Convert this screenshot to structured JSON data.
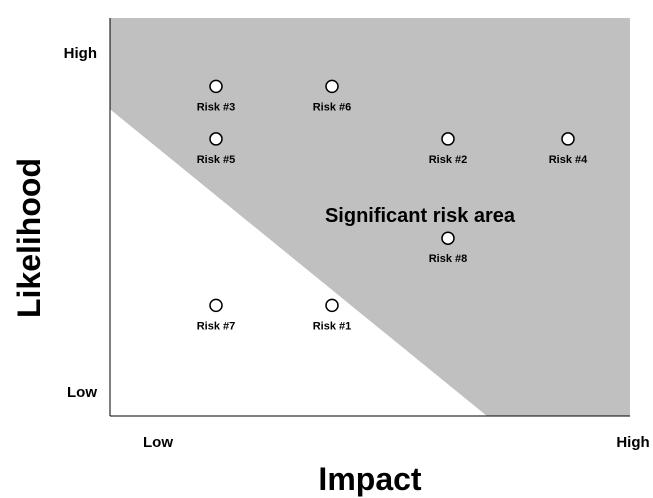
{
  "chart_data": {
    "type": "scatter",
    "title": "",
    "xlabel": "Impact",
    "ylabel": "Likelihood",
    "x_ticks": [
      "Low",
      "High"
    ],
    "y_ticks": [
      "High",
      "Low"
    ],
    "xlim": [
      0,
      10
    ],
    "ylim": [
      0,
      10
    ],
    "grid": false,
    "region": {
      "label": "Significant risk area",
      "color": "#c0c0c0",
      "boundary": [
        [
          0,
          6.8
        ],
        [
          6.1,
          0
        ]
      ]
    },
    "points": [
      {
        "label": "Risk #3",
        "x": 1.2,
        "y": 9.2
      },
      {
        "label": "Risk #6",
        "x": 4.1,
        "y": 9.2
      },
      {
        "label": "Risk #5",
        "x": 1.2,
        "y": 7.4
      },
      {
        "label": "Risk #2",
        "x": 7.0,
        "y": 7.4
      },
      {
        "label": "Risk #4",
        "x": 10.0,
        "y": 7.4
      },
      {
        "label": "Risk #8",
        "x": 7.0,
        "y": 4.0
      },
      {
        "label": "Risk #7",
        "x": 1.2,
        "y": 1.7
      },
      {
        "label": "Risk #1",
        "x": 4.1,
        "y": 1.7
      }
    ]
  }
}
